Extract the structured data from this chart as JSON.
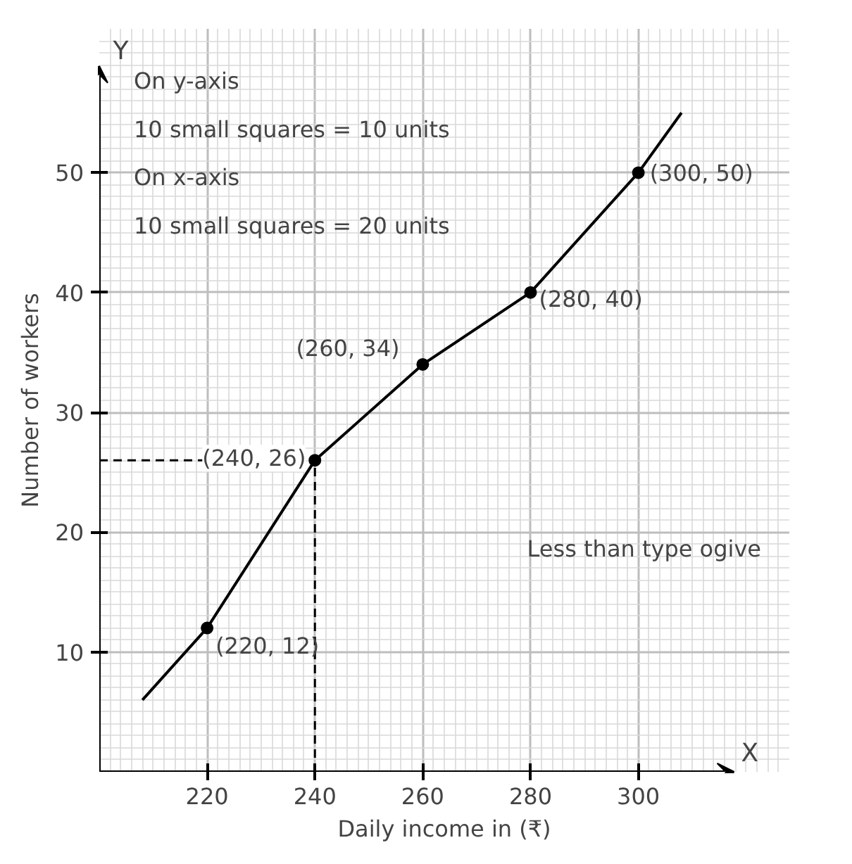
{
  "chart_data": {
    "type": "line",
    "xlabel": "Daily income in (₹)",
    "ylabel": "Number of workers",
    "xlim": [
      200,
      328
    ],
    "ylim": [
      0,
      62
    ],
    "xticks": [
      220,
      240,
      260,
      280,
      300
    ],
    "yticks": [
      10,
      20,
      30,
      40,
      50
    ],
    "grid": true,
    "series": [
      {
        "color": "#000000",
        "x": [
          208,
          220,
          240,
          260,
          280,
          300,
          308
        ],
        "values": [
          6,
          12,
          26,
          34,
          40,
          50,
          55
        ]
      },
      {
        "type": "scatter",
        "color": "#000000",
        "marker": "circle",
        "x": [
          220,
          240,
          260,
          280,
          300
        ],
        "values": [
          12,
          26,
          34,
          40,
          50
        ],
        "value_labels": [
          "(220, 12)",
          "(240, 26)",
          "(260, 34)",
          "(280, 40)",
          "(300, 50)"
        ]
      }
    ],
    "ref_lines": [
      {
        "axis": "x",
        "value": 240,
        "line_style": "dashed",
        "color": "#000000"
      },
      {
        "axis": "y",
        "value": 26,
        "line_style": "dashed",
        "color": "#000000"
      }
    ],
    "annotations": [
      "On y-axis",
      "10 small squares = 10 units",
      "On x-axis",
      "10 small squares = 20 units",
      "Less than type ogive",
      "X",
      "Y"
    ]
  }
}
